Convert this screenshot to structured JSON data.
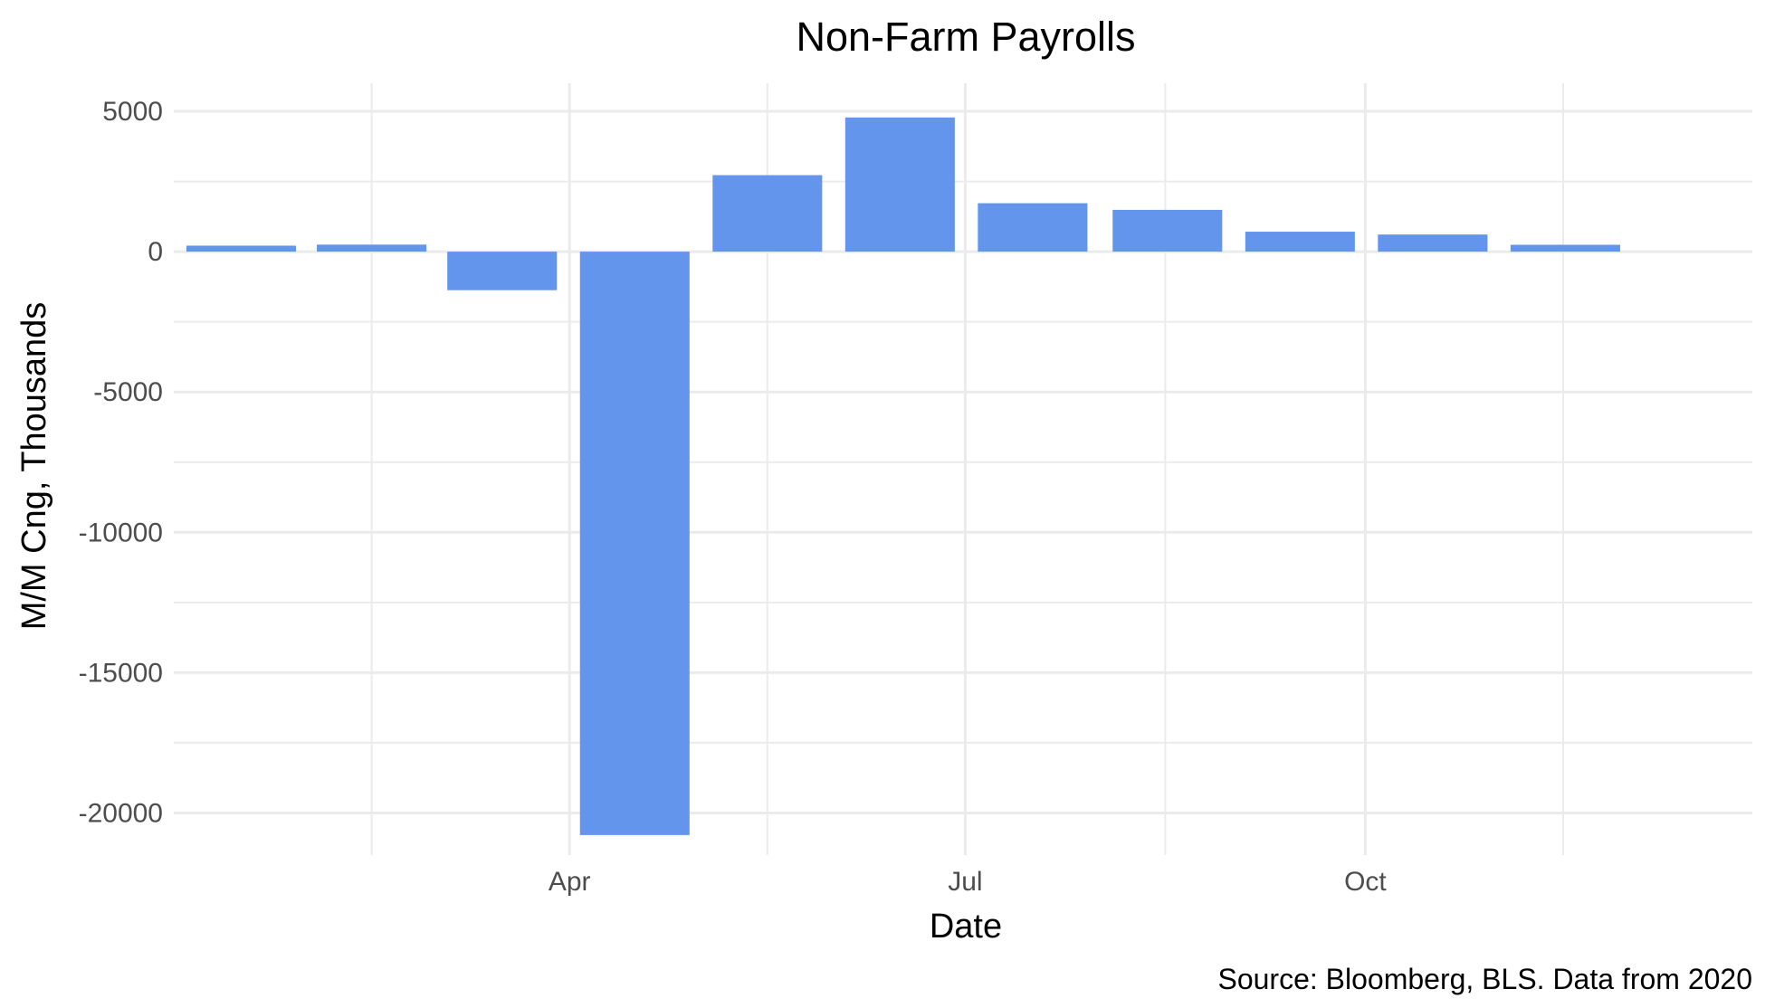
{
  "chart_data": {
    "type": "bar",
    "title": "Non-Farm Payrolls",
    "xlabel": "Date",
    "ylabel": "M/M Cng, Thousands",
    "caption": "Source: Bloomberg, BLS. Data from 2020",
    "bar_color": "#6495ED",
    "grid": true,
    "ylim": [
      -21500,
      6000
    ],
    "yticks": [
      5000,
      0,
      -5000,
      -10000,
      -15000,
      -20000
    ],
    "ytick_labels": [
      "5000",
      "0",
      "-5000",
      "-10000",
      "-15000",
      "-20000"
    ],
    "xlim": [
      "2020-01-01",
      "2020-12-29"
    ],
    "xticks": [
      "2020-04-01",
      "2020-07-01",
      "2020-10-01"
    ],
    "xtick_labels": [
      "Apr",
      "Jul",
      "Oct"
    ],
    "categories": [
      "2020-01",
      "2020-02",
      "2020-03",
      "2020-04",
      "2020-05",
      "2020-06",
      "2020-07",
      "2020-08",
      "2020-09",
      "2020-10",
      "2020-11",
      "2020-12"
    ],
    "values": [
      214,
      251,
      -1373,
      -20787,
      2725,
      4781,
      1726,
      1489,
      711,
      610,
      245,
      null
    ]
  }
}
